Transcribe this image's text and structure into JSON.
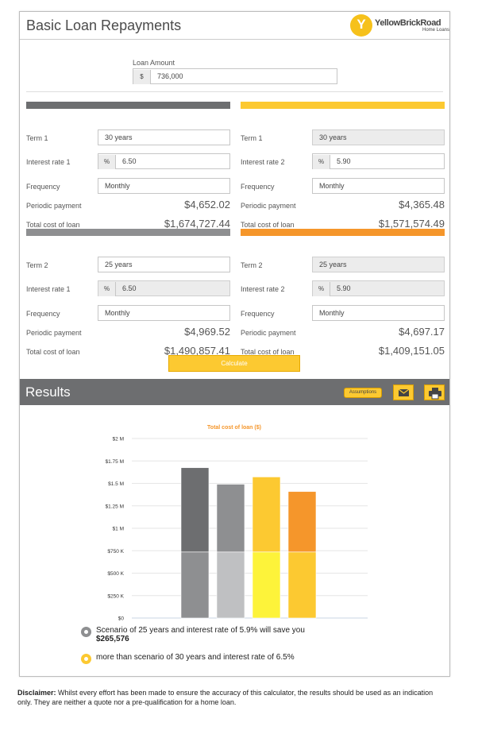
{
  "header": {
    "title": "Basic Loan Repayments",
    "logo_name": "YellowBrickRoad",
    "logo_sub": "Home Loans"
  },
  "loan": {
    "label": "Loan Amount",
    "prefix": "$",
    "value": "736,000"
  },
  "scenarios": [
    {
      "term_label": "Term 1",
      "term": "30 years",
      "rate_label": "Interest rate 1",
      "rate": "6.50",
      "freq_label": "Frequency",
      "freq": "Monthly",
      "pay_label": "Periodic payment",
      "payment": "$4,652.02",
      "cost_label": "Total cost of loan",
      "cost": "$1,674,727.44",
      "bar_color": "#6d6e70"
    },
    {
      "term_label": "Term 1",
      "term": "30 years",
      "rate_label": "Interest rate 2",
      "rate": "5.90",
      "freq_label": "Frequency",
      "freq": "Monthly",
      "pay_label": "Periodic payment",
      "payment": "$4,365.48",
      "cost_label": "Total cost of loan",
      "cost": "$1,571,574.49",
      "bar_color": "#fcc931"
    },
    {
      "term_label": "Term 2",
      "term": "25 years",
      "rate_label": "Interest rate 1",
      "rate": "6.50",
      "freq_label": "Frequency",
      "freq": "Monthly",
      "pay_label": "Periodic payment",
      "payment": "$4,969.52",
      "cost_label": "Total cost of loan",
      "cost": "$1,490,857.41",
      "bar_color": "#8e8f91"
    },
    {
      "term_label": "Term 2",
      "term": "25 years",
      "rate_label": "Interest rate 2",
      "rate": "5.90",
      "freq_label": "Frequency",
      "freq": "Monthly",
      "pay_label": "Periodic payment",
      "payment": "$4,697.17",
      "cost_label": "Total cost of loan",
      "cost": "$1,409,151.05",
      "bar_color": "#f5962b"
    }
  ],
  "rate_prefix": "%",
  "calculate_label": "Calculate",
  "results": {
    "title": "Results",
    "assumptions_label": "Assumptions",
    "email_icon": "envelope-icon",
    "print_icon": "printer-icon"
  },
  "chart_data": {
    "type": "bar",
    "title": "Total cost of loan ($)",
    "ylim": [
      0,
      2000000
    ],
    "yticks": [
      "$0",
      "$250 K",
      "$500 K",
      "$750 K",
      "$1 M",
      "$1.25 M",
      "$1.5 M",
      "$1.75 M",
      "$2 M"
    ],
    "stacked": true,
    "series": [
      {
        "values": [
          736000,
          736000,
          736000,
          736000
        ],
        "colors": [
          "#8e8f91",
          "#bfc0c2",
          "#fdf33a",
          "#fcc931"
        ]
      },
      {
        "values": [
          938727,
          754857,
          835574,
          673151
        ],
        "colors": [
          "#6d6e70",
          "#8e8f91",
          "#fcc931",
          "#f5962b"
        ]
      }
    ],
    "grid": true
  },
  "legend": {
    "line1": "Scenario of 25 years and interest rate of 5.9% will save you",
    "saving": "$265,576",
    "line2": "more than scenario of 30 years and interest rate of 6.5%",
    "dot1_color": "#8e8f91",
    "dot2_color": "#fcc931"
  },
  "disclaimer": {
    "bold": "Disclaimer:",
    "text": " Whilst every effort has been made to ensure the accuracy of this calculator, the results should be used as an indication only. They are neither a quote nor a pre-qualification for a home loan."
  }
}
